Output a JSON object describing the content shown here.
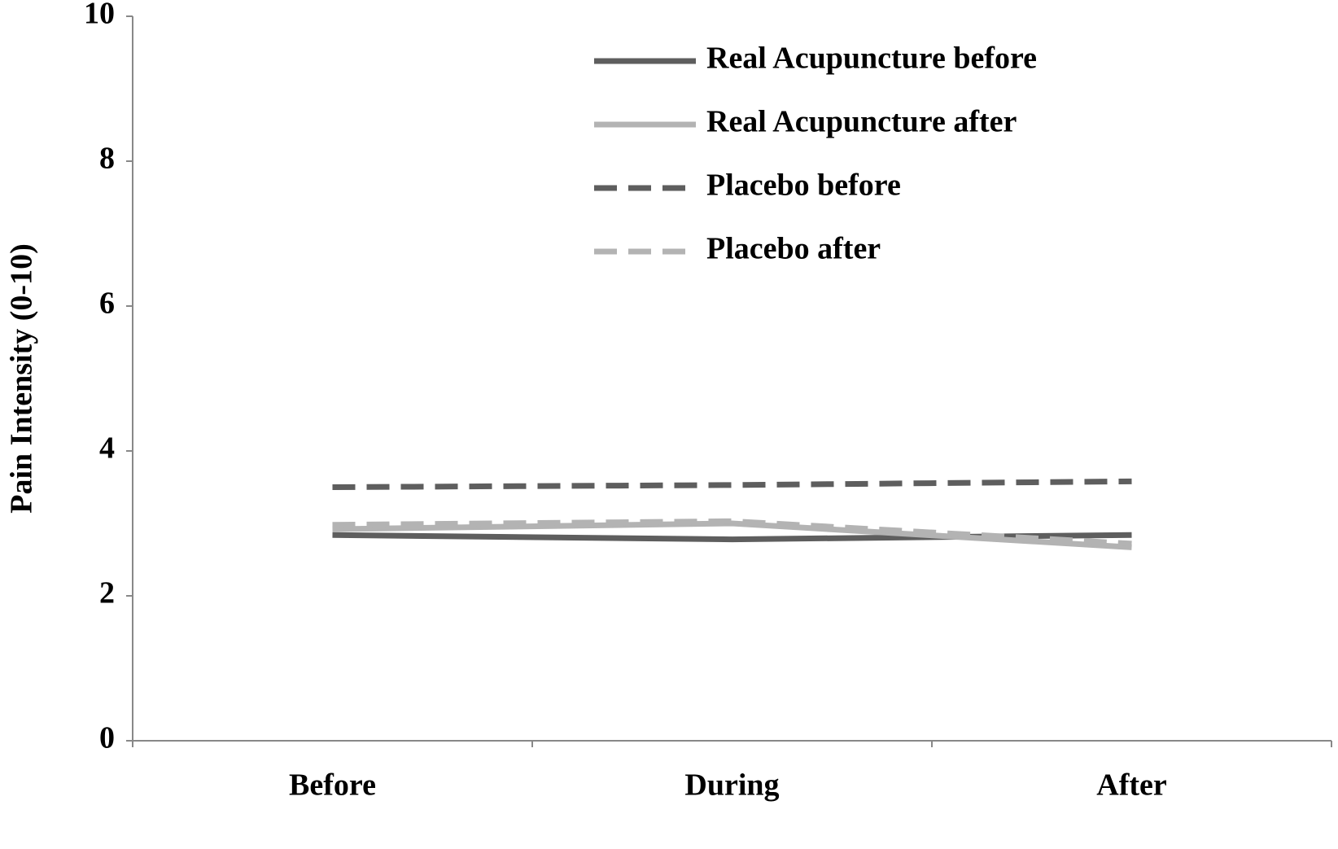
{
  "chart_data": {
    "type": "line",
    "y_label": "Pain Intensity (0-10)",
    "categories": [
      "Before",
      "During",
      "After"
    ],
    "series": [
      {
        "name": "Real Acupuncture before",
        "color": "#5e5e5e",
        "dashed": false,
        "values": [
          2.84,
          2.78,
          2.84
        ]
      },
      {
        "name": "Real Acupuncture after",
        "color": "#b3b3b3",
        "dashed": false,
        "values": [
          2.92,
          3.0,
          2.67
        ]
      },
      {
        "name": "Placebo before",
        "color": "#5e5e5e",
        "dashed": true,
        "values": [
          3.5,
          3.53,
          3.58
        ]
      },
      {
        "name": "Placebo after",
        "color": "#b3b3b3",
        "dashed": true,
        "values": [
          2.98,
          3.03,
          2.72
        ]
      }
    ],
    "ylim": [
      0,
      10
    ],
    "yticks": [
      0,
      2,
      4,
      6,
      8,
      10
    ],
    "grid": false,
    "legend": "upper right"
  }
}
